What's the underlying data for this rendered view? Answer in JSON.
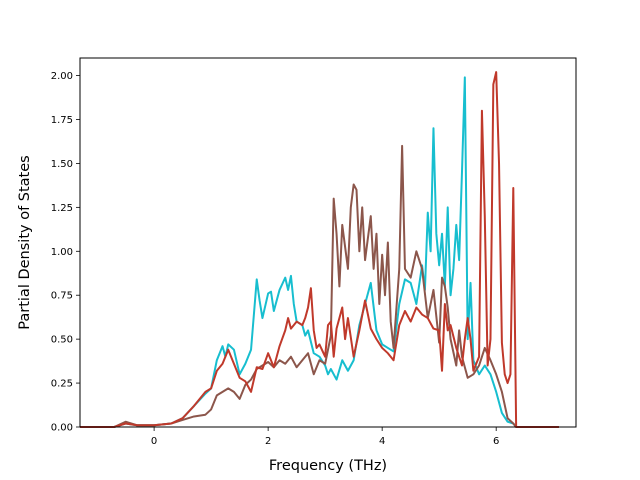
{
  "chart_data": {
    "type": "line",
    "title": "",
    "xlabel": "Frequency (THz)",
    "ylabel": "Partial Density of States",
    "xlim": [
      -1.3,
      7.4
    ],
    "ylim": [
      0,
      2.1
    ],
    "xticks": [
      0,
      2,
      4,
      6
    ],
    "xtick_labels": [
      "0",
      "2",
      "4",
      "6"
    ],
    "yticks": [
      0,
      0.25,
      0.5,
      0.75,
      1.0,
      1.25,
      1.5,
      1.75,
      2.0
    ],
    "ytick_labels": [
      "0.00",
      "0.25",
      "0.50",
      "0.75",
      "1.00",
      "1.25",
      "1.50",
      "1.75",
      "2.00"
    ],
    "grid": false,
    "legend": "none",
    "series": [
      {
        "color": "#17becf",
        "points": [
          [
            -1.3,
            0
          ],
          [
            -0.7,
            0
          ],
          [
            -0.5,
            0.02
          ],
          [
            -0.3,
            0.01
          ],
          [
            0,
            0.01
          ],
          [
            0.3,
            0.02
          ],
          [
            0.5,
            0.05
          ],
          [
            0.7,
            0.12
          ],
          [
            0.9,
            0.19
          ],
          [
            1.0,
            0.22
          ],
          [
            1.1,
            0.38
          ],
          [
            1.2,
            0.46
          ],
          [
            1.25,
            0.4
          ],
          [
            1.3,
            0.47
          ],
          [
            1.4,
            0.44
          ],
          [
            1.5,
            0.3
          ],
          [
            1.6,
            0.36
          ],
          [
            1.7,
            0.44
          ],
          [
            1.8,
            0.84
          ],
          [
            1.85,
            0.72
          ],
          [
            1.9,
            0.62
          ],
          [
            2.0,
            0.76
          ],
          [
            2.05,
            0.77
          ],
          [
            2.1,
            0.66
          ],
          [
            2.2,
            0.78
          ],
          [
            2.3,
            0.85
          ],
          [
            2.35,
            0.78
          ],
          [
            2.4,
            0.86
          ],
          [
            2.45,
            0.7
          ],
          [
            2.5,
            0.6
          ],
          [
            2.6,
            0.58
          ],
          [
            2.65,
            0.52
          ],
          [
            2.7,
            0.55
          ],
          [
            2.8,
            0.42
          ],
          [
            2.9,
            0.4
          ],
          [
            3.0,
            0.35
          ],
          [
            3.05,
            0.3
          ],
          [
            3.1,
            0.33
          ],
          [
            3.2,
            0.27
          ],
          [
            3.3,
            0.38
          ],
          [
            3.4,
            0.32
          ],
          [
            3.5,
            0.38
          ],
          [
            3.6,
            0.58
          ],
          [
            3.7,
            0.7
          ],
          [
            3.8,
            0.82
          ],
          [
            3.9,
            0.55
          ],
          [
            4.0,
            0.47
          ],
          [
            4.1,
            0.45
          ],
          [
            4.2,
            0.43
          ],
          [
            4.3,
            0.7
          ],
          [
            4.4,
            0.84
          ],
          [
            4.5,
            0.82
          ],
          [
            4.6,
            0.7
          ],
          [
            4.7,
            0.92
          ],
          [
            4.75,
            0.78
          ],
          [
            4.8,
            1.22
          ],
          [
            4.85,
            1.0
          ],
          [
            4.9,
            1.7
          ],
          [
            4.95,
            1.1
          ],
          [
            5.0,
            0.92
          ],
          [
            5.05,
            1.1
          ],
          [
            5.1,
            0.8
          ],
          [
            5.15,
            1.25
          ],
          [
            5.2,
            0.75
          ],
          [
            5.25,
            0.9
          ],
          [
            5.3,
            1.15
          ],
          [
            5.35,
            0.95
          ],
          [
            5.4,
            1.45
          ],
          [
            5.45,
            1.99
          ],
          [
            5.5,
            0.5
          ],
          [
            5.55,
            0.82
          ],
          [
            5.6,
            0.38
          ],
          [
            5.7,
            0.3
          ],
          [
            5.8,
            0.35
          ],
          [
            5.9,
            0.3
          ],
          [
            6.0,
            0.2
          ],
          [
            6.1,
            0.08
          ],
          [
            6.2,
            0.03
          ],
          [
            6.3,
            0.02
          ],
          [
            6.35,
            0.0
          ],
          [
            7.1,
            0
          ]
        ]
      },
      {
        "color": "#8c564b",
        "points": [
          [
            -1.3,
            0
          ],
          [
            -0.7,
            0
          ],
          [
            -0.5,
            0.03
          ],
          [
            -0.3,
            0.01
          ],
          [
            0,
            0.01
          ],
          [
            0.3,
            0.02
          ],
          [
            0.5,
            0.04
          ],
          [
            0.7,
            0.06
          ],
          [
            0.9,
            0.07
          ],
          [
            1.0,
            0.1
          ],
          [
            1.1,
            0.18
          ],
          [
            1.2,
            0.2
          ],
          [
            1.3,
            0.22
          ],
          [
            1.4,
            0.2
          ],
          [
            1.5,
            0.16
          ],
          [
            1.6,
            0.24
          ],
          [
            1.7,
            0.27
          ],
          [
            1.8,
            0.33
          ],
          [
            1.9,
            0.35
          ],
          [
            2.0,
            0.37
          ],
          [
            2.1,
            0.34
          ],
          [
            2.2,
            0.38
          ],
          [
            2.3,
            0.36
          ],
          [
            2.4,
            0.4
          ],
          [
            2.5,
            0.34
          ],
          [
            2.6,
            0.38
          ],
          [
            2.7,
            0.42
          ],
          [
            2.75,
            0.36
          ],
          [
            2.8,
            0.3
          ],
          [
            2.9,
            0.38
          ],
          [
            3.0,
            0.36
          ],
          [
            3.1,
            0.52
          ],
          [
            3.15,
            1.3
          ],
          [
            3.2,
            1.1
          ],
          [
            3.25,
            0.8
          ],
          [
            3.3,
            1.15
          ],
          [
            3.4,
            0.9
          ],
          [
            3.45,
            1.25
          ],
          [
            3.5,
            1.38
          ],
          [
            3.55,
            1.35
          ],
          [
            3.6,
            1.0
          ],
          [
            3.65,
            1.25
          ],
          [
            3.7,
            0.95
          ],
          [
            3.8,
            1.2
          ],
          [
            3.85,
            0.9
          ],
          [
            3.9,
            1.1
          ],
          [
            3.95,
            0.7
          ],
          [
            4.0,
            0.98
          ],
          [
            4.05,
            0.75
          ],
          [
            4.1,
            1.05
          ],
          [
            4.15,
            0.6
          ],
          [
            4.2,
            0.45
          ],
          [
            4.3,
            0.9
          ],
          [
            4.35,
            1.6
          ],
          [
            4.4,
            0.9
          ],
          [
            4.5,
            0.85
          ],
          [
            4.6,
            1.0
          ],
          [
            4.7,
            0.9
          ],
          [
            4.8,
            0.62
          ],
          [
            4.9,
            0.78
          ],
          [
            5.0,
            0.48
          ],
          [
            5.05,
            0.85
          ],
          [
            5.1,
            0.8
          ],
          [
            5.15,
            0.68
          ],
          [
            5.2,
            0.5
          ],
          [
            5.3,
            0.35
          ],
          [
            5.35,
            0.55
          ],
          [
            5.4,
            0.4
          ],
          [
            5.5,
            0.28
          ],
          [
            5.6,
            0.3
          ],
          [
            5.7,
            0.35
          ],
          [
            5.8,
            0.45
          ],
          [
            5.9,
            0.38
          ],
          [
            6.0,
            0.3
          ],
          [
            6.1,
            0.2
          ],
          [
            6.2,
            0.05
          ],
          [
            6.3,
            0.02
          ],
          [
            6.35,
            0.0
          ],
          [
            7.1,
            0
          ]
        ]
      },
      {
        "color": "#c0392b",
        "points": [
          [
            -1.3,
            0
          ],
          [
            -0.7,
            0
          ],
          [
            -0.5,
            0.02
          ],
          [
            -0.3,
            0.01
          ],
          [
            0,
            0.01
          ],
          [
            0.3,
            0.02
          ],
          [
            0.5,
            0.05
          ],
          [
            0.7,
            0.12
          ],
          [
            0.9,
            0.2
          ],
          [
            1.0,
            0.22
          ],
          [
            1.1,
            0.32
          ],
          [
            1.2,
            0.36
          ],
          [
            1.3,
            0.44
          ],
          [
            1.4,
            0.36
          ],
          [
            1.5,
            0.28
          ],
          [
            1.6,
            0.26
          ],
          [
            1.7,
            0.2
          ],
          [
            1.8,
            0.34
          ],
          [
            1.9,
            0.33
          ],
          [
            2.0,
            0.42
          ],
          [
            2.1,
            0.34
          ],
          [
            2.2,
            0.46
          ],
          [
            2.3,
            0.55
          ],
          [
            2.35,
            0.62
          ],
          [
            2.4,
            0.56
          ],
          [
            2.5,
            0.6
          ],
          [
            2.6,
            0.58
          ],
          [
            2.65,
            0.62
          ],
          [
            2.7,
            0.68
          ],
          [
            2.75,
            0.79
          ],
          [
            2.8,
            0.55
          ],
          [
            2.85,
            0.45
          ],
          [
            2.9,
            0.47
          ],
          [
            3.0,
            0.4
          ],
          [
            3.05,
            0.58
          ],
          [
            3.1,
            0.6
          ],
          [
            3.15,
            0.4
          ],
          [
            3.2,
            0.56
          ],
          [
            3.3,
            0.68
          ],
          [
            3.35,
            0.5
          ],
          [
            3.4,
            0.62
          ],
          [
            3.5,
            0.4
          ],
          [
            3.6,
            0.55
          ],
          [
            3.7,
            0.72
          ],
          [
            3.8,
            0.56
          ],
          [
            3.9,
            0.5
          ],
          [
            4.0,
            0.45
          ],
          [
            4.1,
            0.42
          ],
          [
            4.2,
            0.38
          ],
          [
            4.3,
            0.58
          ],
          [
            4.4,
            0.66
          ],
          [
            4.5,
            0.6
          ],
          [
            4.6,
            0.68
          ],
          [
            4.7,
            0.64
          ],
          [
            4.8,
            0.62
          ],
          [
            4.9,
            0.56
          ],
          [
            5.0,
            0.55
          ],
          [
            5.05,
            0.32
          ],
          [
            5.1,
            0.7
          ],
          [
            5.15,
            0.55
          ],
          [
            5.2,
            0.58
          ],
          [
            5.3,
            0.45
          ],
          [
            5.4,
            0.35
          ],
          [
            5.45,
            0.5
          ],
          [
            5.5,
            0.62
          ],
          [
            5.55,
            0.5
          ],
          [
            5.6,
            0.32
          ],
          [
            5.7,
            0.4
          ],
          [
            5.75,
            1.8
          ],
          [
            5.8,
            1.2
          ],
          [
            5.85,
            0.35
          ],
          [
            5.9,
            0.5
          ],
          [
            5.95,
            1.95
          ],
          [
            6.0,
            2.02
          ],
          [
            6.05,
            1.5
          ],
          [
            6.1,
            0.48
          ],
          [
            6.15,
            0.3
          ],
          [
            6.2,
            0.25
          ],
          [
            6.25,
            0.3
          ],
          [
            6.3,
            1.36
          ],
          [
            6.35,
            0.0
          ],
          [
            7.1,
            0
          ]
        ]
      }
    ]
  }
}
